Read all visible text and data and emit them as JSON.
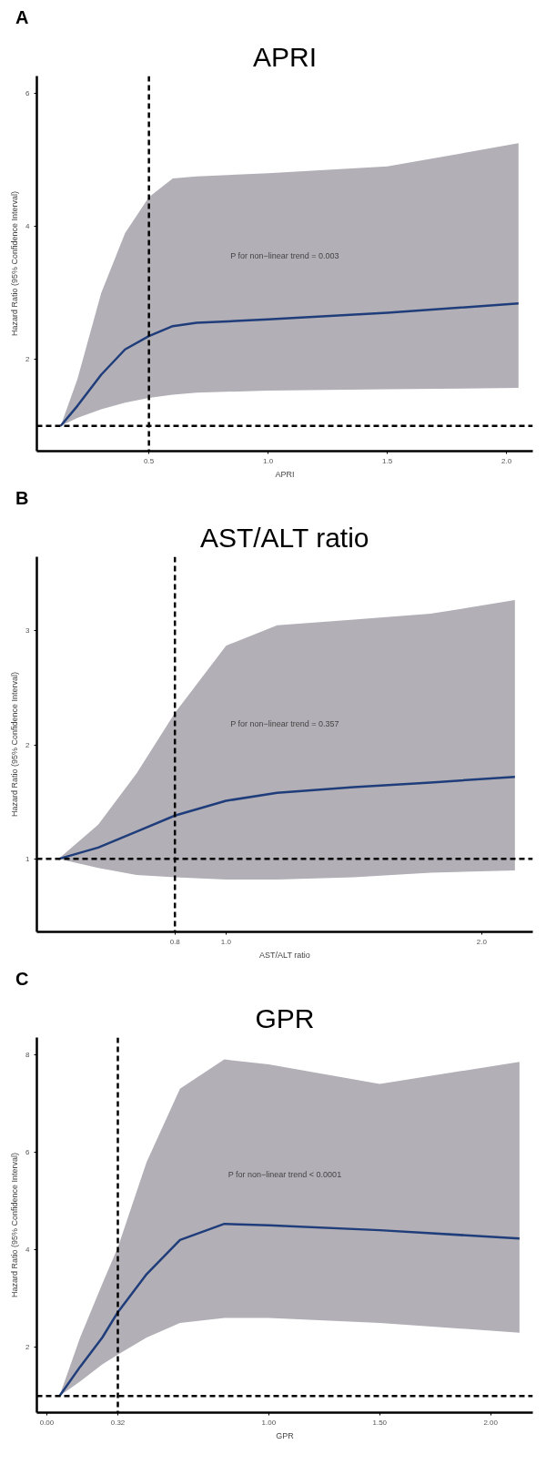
{
  "chart_data": [
    {
      "type": "line",
      "title": "APRI",
      "xlabel": "APRI",
      "ylabel": "Hazard Ratio (95% Confidence Interval)",
      "annotations": [
        "A",
        "P for non−linear trend = 0.003"
      ],
      "xlim": [
        0.03,
        2.11
      ],
      "ylim": [
        0.62,
        6.26
      ],
      "xticks": [
        0.5,
        {
          "value": 1,
          "label": "1.0"
        },
        1.5,
        {
          "value": 2,
          "label": "2.0"
        }
      ],
      "yticks": [
        2,
        4,
        6
      ],
      "grid": false,
      "line_style": "solid",
      "marker": "none",
      "ref_lines": [
        {
          "axis": "x",
          "value": 0.5,
          "color": "#000000",
          "line_style": "dashed"
        },
        {
          "axis": "y",
          "value": 1,
          "color": "#000000",
          "line_style": "dashed"
        }
      ],
      "series": [
        {
          "color": "#1f3d7a",
          "x": [
            0.13,
            0.2,
            0.3,
            0.4,
            0.5,
            0.6,
            0.7,
            1.0,
            1.5,
            2.05
          ],
          "values": [
            1,
            1.3,
            1.77,
            2.15,
            2.35,
            2.5,
            2.55,
            2.6,
            2.7,
            2.84
          ],
          "lower": [
            1,
            1.12,
            1.25,
            1.35,
            1.42,
            1.47,
            1.5,
            1.53,
            1.55,
            1.57
          ],
          "upper": [
            1,
            1.7,
            3.0,
            3.9,
            4.44,
            4.72,
            4.75,
            4.8,
            4.9,
            5.25
          ]
        }
      ]
    },
    {
      "type": "line",
      "title": "AST/ALT ratio",
      "xlabel": "AST/ALT ratio",
      "ylabel": "Hazard Ratio (95% Confidence Interval)",
      "annotations": [
        "B",
        "P for non−linear trend = 0.357"
      ],
      "xlim": [
        0.26,
        2.2
      ],
      "ylim": [
        0.36,
        3.65
      ],
      "xticks": [
        0.8,
        {
          "value": 1,
          "label": "1.0"
        },
        {
          "value": 2,
          "label": "2.0"
        }
      ],
      "yticks": [
        1,
        2,
        3
      ],
      "grid": false,
      "line_style": "solid",
      "marker": "none",
      "ref_lines": [
        {
          "axis": "x",
          "value": 0.8,
          "color": "#000000",
          "line_style": "dashed"
        },
        {
          "axis": "y",
          "value": 1,
          "color": "#000000",
          "line_style": "dashed"
        }
      ],
      "series": [
        {
          "color": "#1f3d7a",
          "x": [
            0.345,
            0.5,
            0.65,
            0.8,
            1.0,
            1.2,
            1.5,
            1.8,
            2.13
          ],
          "values": [
            1,
            1.1,
            1.24,
            1.38,
            1.51,
            1.58,
            1.63,
            1.67,
            1.72
          ],
          "lower": [
            1,
            0.92,
            0.86,
            0.84,
            0.82,
            0.82,
            0.84,
            0.88,
            0.9
          ],
          "upper": [
            1,
            1.3,
            1.75,
            2.28,
            2.87,
            3.05,
            3.1,
            3.15,
            3.27
          ]
        }
      ]
    },
    {
      "type": "line",
      "title": "GPR",
      "xlabel": "GPR",
      "ylabel": "Hazard Ratio (95% Confidence Interval)",
      "annotations": [
        "C",
        "P for non−linear trend < 0.0001"
      ],
      "xlim": [
        -0.045,
        2.19
      ],
      "ylim": [
        0.66,
        8.35
      ],
      "xticks": [
        {
          "value": 0,
          "label": "0.00"
        },
        {
          "value": 0.32,
          "label": "0.32"
        },
        {
          "value": 1,
          "label": "1.00"
        },
        {
          "value": 1.5,
          "label": "1.50"
        },
        {
          "value": 2,
          "label": "2.00"
        }
      ],
      "yticks": [
        2,
        4,
        6,
        8
      ],
      "grid": false,
      "line_style": "solid",
      "marker": "none",
      "ref_lines": [
        {
          "axis": "x",
          "value": 0.32,
          "color": "#000000",
          "line_style": "dashed"
        },
        {
          "axis": "y",
          "value": 1,
          "color": "#000000",
          "line_style": "dashed"
        }
      ],
      "series": [
        {
          "color": "#1f3d7a",
          "x": [
            0.057,
            0.15,
            0.25,
            0.32,
            0.45,
            0.6,
            0.8,
            1.0,
            1.5,
            2.13
          ],
          "values": [
            1,
            1.6,
            2.2,
            2.72,
            3.5,
            4.2,
            4.53,
            4.5,
            4.4,
            4.23
          ],
          "lower": [
            1,
            1.3,
            1.65,
            1.85,
            2.2,
            2.5,
            2.6,
            2.6,
            2.5,
            2.3
          ],
          "upper": [
            1,
            2.2,
            3.3,
            4.05,
            5.8,
            7.3,
            7.9,
            7.8,
            7.4,
            7.85
          ]
        }
      ]
    }
  ]
}
